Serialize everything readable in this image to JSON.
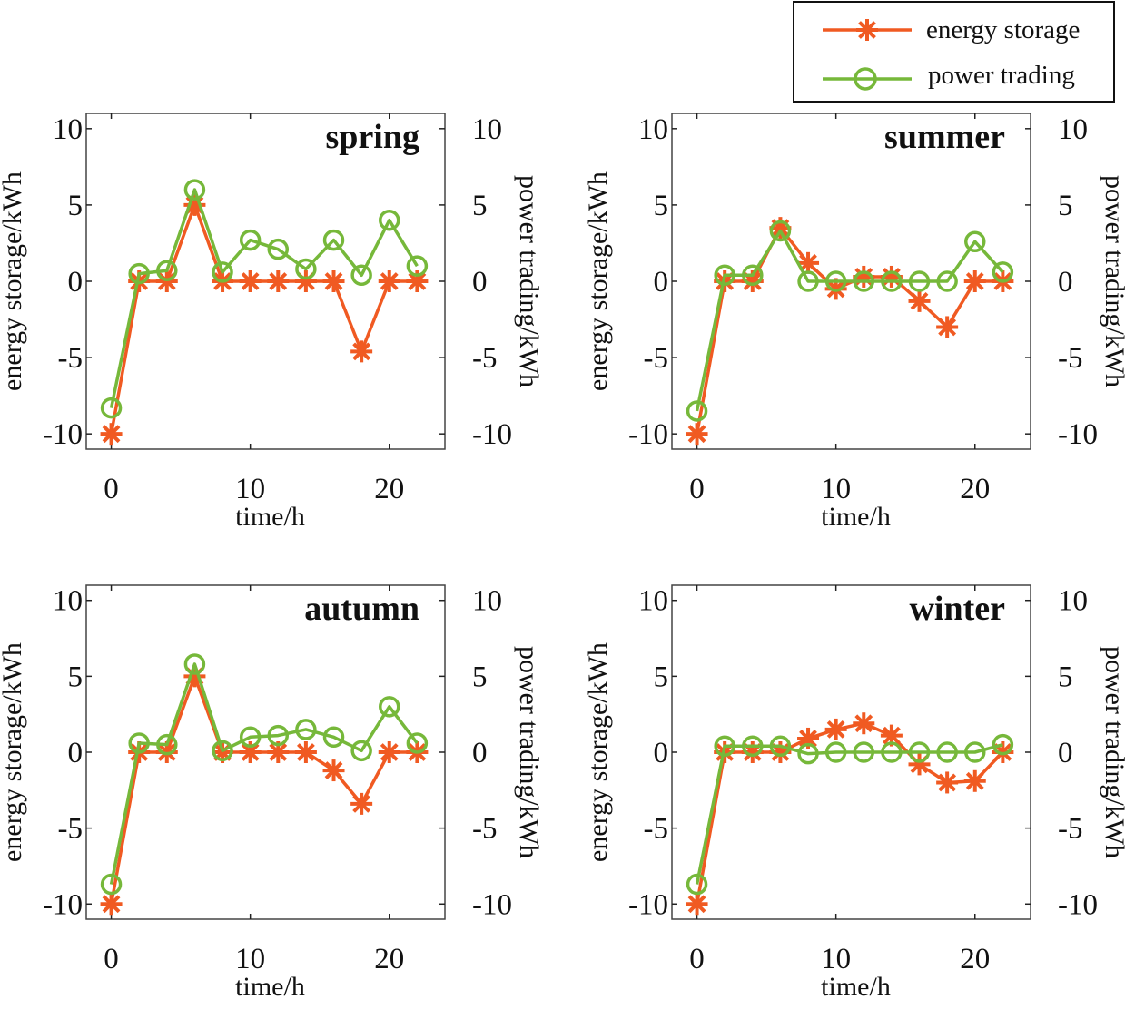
{
  "legend": {
    "entries": [
      {
        "label": "energy storage",
        "color": "#f05a22",
        "marker": "asterisk"
      },
      {
        "label": "power trading",
        "color": "#76b83a",
        "marker": "circle"
      }
    ]
  },
  "chart_data": [
    {
      "type": "line",
      "title": "spring",
      "xlabel": "time/h",
      "ylabel": "energy storage/kWh",
      "y2label": "power trading/kWh",
      "xticks": [
        0,
        10,
        20
      ],
      "yticks": [
        -10,
        -5,
        0,
        5,
        10
      ],
      "xlim": [
        -1.8,
        24
      ],
      "ylim": [
        -11,
        11
      ],
      "x": [
        0,
        2,
        4,
        6,
        8,
        10,
        12,
        14,
        16,
        18,
        20,
        22
      ],
      "series": [
        {
          "name": "energy storage",
          "values": [
            -10,
            0,
            0,
            5,
            0,
            0,
            0,
            0,
            0,
            -4.6,
            0,
            0
          ]
        },
        {
          "name": "power trading",
          "values": [
            -8.3,
            0.5,
            0.7,
            6,
            0.6,
            2.7,
            2.1,
            0.8,
            2.7,
            0.4,
            4,
            1
          ]
        }
      ]
    },
    {
      "type": "line",
      "title": "summer",
      "xlabel": "time/h",
      "ylabel": "energy storage/kWh",
      "y2label": "power trading/kWh",
      "xticks": [
        0,
        10,
        20
      ],
      "yticks": [
        -10,
        -5,
        0,
        5,
        10
      ],
      "xlim": [
        -1.8,
        24
      ],
      "ylim": [
        -11,
        11
      ],
      "x": [
        0,
        2,
        4,
        6,
        8,
        10,
        12,
        14,
        16,
        18,
        20,
        22
      ],
      "series": [
        {
          "name": "energy storage",
          "values": [
            -10,
            0,
            0,
            3.5,
            1.2,
            -0.5,
            0.3,
            0.3,
            -1.3,
            -3,
            0,
            0
          ]
        },
        {
          "name": "power trading",
          "values": [
            -8.5,
            0.4,
            0.4,
            3.3,
            0,
            0,
            0,
            0,
            0,
            0,
            2.6,
            0.6
          ]
        }
      ]
    },
    {
      "type": "line",
      "title": "autumn",
      "xlabel": "time/h",
      "ylabel": "energy storage/kWh",
      "y2label": "power trading/kWh",
      "xticks": [
        0,
        10,
        20
      ],
      "yticks": [
        -10,
        -5,
        0,
        5,
        10
      ],
      "xlim": [
        -1.8,
        24
      ],
      "ylim": [
        -11,
        11
      ],
      "x": [
        0,
        2,
        4,
        6,
        8,
        10,
        12,
        14,
        16,
        18,
        20,
        22
      ],
      "series": [
        {
          "name": "energy storage",
          "values": [
            -10,
            0,
            0,
            5,
            0,
            0,
            0,
            0,
            -1.2,
            -3.4,
            0,
            0
          ]
        },
        {
          "name": "power trading",
          "values": [
            -8.7,
            0.6,
            0.5,
            5.8,
            0.1,
            1,
            1.1,
            1.5,
            1,
            0.1,
            3,
            0.6
          ]
        }
      ]
    },
    {
      "type": "line",
      "title": "winter",
      "xlabel": "time/h",
      "ylabel": "energy storage/kWh",
      "y2label": "power trading/kWh",
      "xticks": [
        0,
        10,
        20
      ],
      "yticks": [
        -10,
        -5,
        0,
        5,
        10
      ],
      "xlim": [
        -1.8,
        24
      ],
      "ylim": [
        -11,
        11
      ],
      "x": [
        0,
        2,
        4,
        6,
        8,
        10,
        12,
        14,
        16,
        18,
        20,
        22
      ],
      "series": [
        {
          "name": "energy storage",
          "values": [
            -10,
            0,
            0,
            0,
            0.9,
            1.5,
            1.9,
            1.1,
            -0.8,
            -2,
            -1.9,
            0
          ]
        },
        {
          "name": "power trading",
          "values": [
            -8.7,
            0.4,
            0.4,
            0.4,
            -0.1,
            0,
            0,
            0,
            0,
            0,
            0,
            0.5
          ]
        }
      ]
    }
  ]
}
